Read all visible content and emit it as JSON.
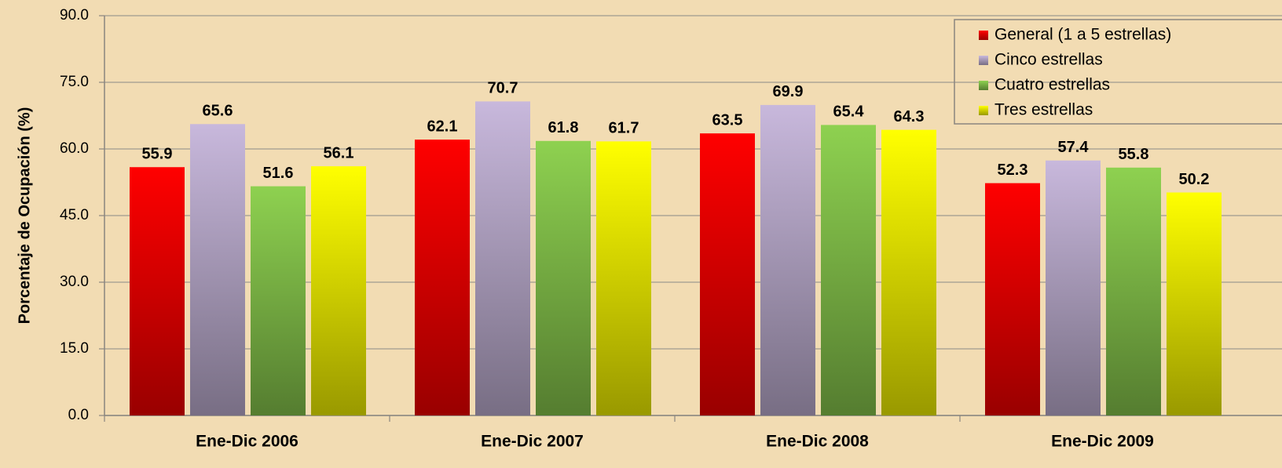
{
  "chart_data": {
    "type": "bar",
    "y_label": "Porcentaje de Ocupación (%)",
    "categories": [
      "Ene-Dic 2006",
      "Ene-Dic 2007",
      "Ene-Dic 2008",
      "Ene-Dic 2009"
    ],
    "series": [
      {
        "name": "General (1 a 5 estrellas)",
        "color": "#ff0000",
        "values": [
          55.9,
          62.1,
          63.5,
          52.3
        ]
      },
      {
        "name": "Cinco estrellas",
        "color": "#c8b8dc",
        "values": [
          65.6,
          70.7,
          69.9,
          57.4
        ]
      },
      {
        "name": "Cuatro estrellas",
        "color": "#8ed150",
        "values": [
          51.6,
          61.8,
          65.4,
          55.8
        ]
      },
      {
        "name": "Tres estrellas",
        "color": "#ffff00",
        "values": [
          56.1,
          61.7,
          64.3,
          50.2
        ]
      }
    ],
    "ylim": [
      0,
      90
    ],
    "yticks": [
      {
        "value": 0,
        "label": "0.0"
      },
      {
        "value": 15,
        "label": "15.0"
      },
      {
        "value": 30,
        "label": "30.0"
      },
      {
        "value": 45,
        "label": "45.0"
      },
      {
        "value": 60,
        "label": "60.0"
      },
      {
        "value": 75,
        "label": "75.0"
      },
      {
        "value": 90,
        "label": "90.0"
      }
    ],
    "grid": true,
    "legend": "upper right"
  }
}
